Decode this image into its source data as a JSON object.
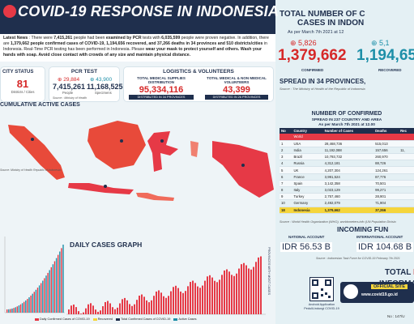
{
  "header": {
    "title": "COVID-19 RESPONSE IN INDONESIA"
  },
  "news": {
    "label": "Latest News",
    "text1": " : There were ",
    "tests": "7,415,261",
    "text2": " people had been ",
    "examined": "examined by PCR",
    "text3": " tests with ",
    "negative_count": "6,035,599",
    "text4": " people were proven negative. In addition, there are ",
    "confirmed": "1,379,662 people confirmed cases of COVID-19, 1,194,656 recovered, and 37,266 deaths in 34 provinces and 510 districts/cities",
    "text5": " in Indonesia. Real-Time PCR testing has been performed in Indonesia. Please ",
    "mask": "wear your mask to protect yourself and others. Wash your hands with soap. Avoid close contact with crowds of any size and maintain physical distance."
  },
  "city_status": {
    "title": "CITY STATUS",
    "value": "81",
    "label": "Districts / Cities"
  },
  "pcr": {
    "title": "PCR TEST",
    "delta_people": "29,884",
    "delta_specimens": "43,900",
    "people": "7,415,261",
    "specimens": "11,168,525",
    "people_label": "People",
    "specimens_label": "Specimens",
    "source": "Source : Ministry of Health"
  },
  "logistics": {
    "title": "LOGISTICS & VOLUNTEERS",
    "supplies_label": "TOTAL MEDICAL SUPPLIES DISTRIBUTION",
    "supplies_value": "95,334,116",
    "supplies_note": "DISTRIBUTED IN 34 PROVINCES",
    "volunteers_label": "TOTAL MEDICAL & NON MEDICAL VOLUNTEERS",
    "volunteers_value": "43,399",
    "volunteers_note": "DISTRIBUTED IN 26 PROVINCES",
    "source": "Source : Indonesian Task Force for COVID-19"
  },
  "map": {
    "title": "CUMULATIVE ACTIVE CASES",
    "source": "Source: Ministry of Health Republic of Indonesia"
  },
  "daily_chart": {
    "title": "DAILY CASES GRAPH",
    "side_text": "PROVINCES WITH MOST CASES",
    "legend": [
      "Daily Confirmed Cases of COVID-19",
      "Recovered",
      "Total Confirmed Cases of COVID-19",
      "Active Cases"
    ]
  },
  "totals": {
    "title_line1": "TOTAL NUMBER OF C",
    "title_line2": "CASES IN INDON",
    "as_per": "As per March 7th 2021 at 12",
    "confirmed_delta": "5,826",
    "recovered_delta": "5,1",
    "confirmed": "1,379,662",
    "recovered": "1,194,65",
    "confirmed_label": "CONFIRMED",
    "recovered_label": "RECOVERED",
    "spread": "SPREAD IN 34 PROVINCES,",
    "source": "Source : The Ministry of Health of the Republic of Indonesia"
  },
  "world": {
    "title": "NUMBER OF CONFIRMED",
    "subtitle1": "SPREAD IN 237 COUNTRY AND AREA",
    "subtitle2": "As per March 7th 2021 at 12.00",
    "headers": [
      "No",
      "Country",
      "Number of Cases",
      "Deaths",
      "Rec"
    ],
    "rows": [
      [
        "",
        "World",
        "",
        "",
        ""
      ],
      [
        "1",
        "USA",
        "28,468,736",
        "515,013",
        ""
      ],
      [
        "2",
        "India",
        "11,192,088",
        "157,656",
        "11,"
      ],
      [
        "3",
        "Brazil",
        "10,793,732",
        "260,970",
        ""
      ],
      [
        "4",
        "Russia",
        "4,312,181",
        "88,726",
        ""
      ],
      [
        "5",
        "UK",
        "4,207,304",
        "124,261",
        ""
      ],
      [
        "6",
        "France",
        "3,991,524",
        "87,776",
        ""
      ],
      [
        "7",
        "Spain",
        "3,142,358",
        "70,501",
        ""
      ],
      [
        "8",
        "Italy",
        "3,023,129",
        "99,271",
        ""
      ],
      [
        "9",
        "Turkey",
        "2,757,460",
        "28,901",
        ""
      ],
      [
        "10",
        "Germany",
        "2,492,079",
        "71,904",
        ""
      ],
      [
        "18",
        "Indonesia",
        "1,379,662",
        "37,266",
        ""
      ]
    ],
    "source": "Source : World Health Organization (WHO), worldometers.info (UN Population Divisio"
  },
  "funding": {
    "title": "INCOMING FUN",
    "national_label": "NATIONAL ACCOUNT",
    "national_value": "IDR 56.53 B",
    "international_label": "INTERNATIONAL ACCOUNT",
    "international_value": "IDR 104.68 B",
    "source": "Source : Indonesian Task Force for COVID-19 February 7th 2021",
    "total_label": "TOTAL ",
    "total_id": "ID"
  },
  "info": {
    "title": "INFORMA",
    "qr_label": "Android Application PeduliLindungi COVID-19",
    "official_label": "OFFICIAL SITE",
    "official_url": "www.covid19.go.id"
  },
  "footer": {
    "no": "No : 147/U"
  },
  "colors": {
    "navy": "#1f2f4d",
    "red": "#e63946",
    "teal": "#1d8fa8",
    "yellow": "#f5d53b"
  }
}
